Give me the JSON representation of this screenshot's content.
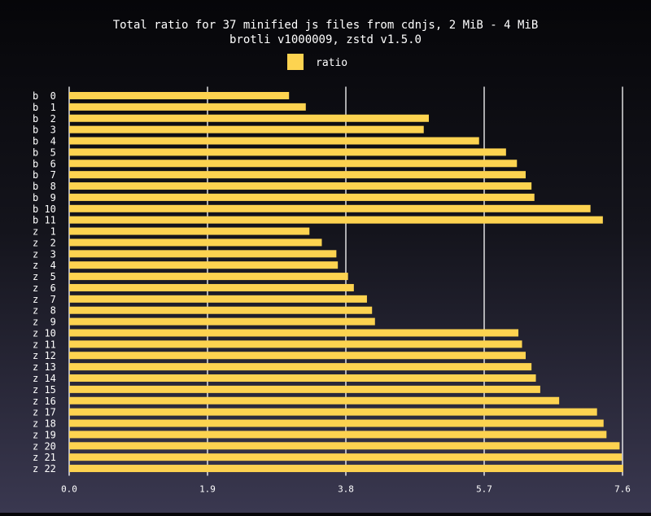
{
  "chart_data": {
    "type": "bar",
    "orientation": "horizontal",
    "title": "Total ratio for 37 minified js files from cdnjs, 2 MiB - 4 MiB",
    "subtitle": "brotli v1000009, zstd v1.5.0",
    "legend": {
      "label": "ratio",
      "placement": "top-center"
    },
    "bar_color": "#fdd350",
    "grid_color": "#ffffff",
    "xlim": [
      0,
      7.6
    ],
    "xticks": [
      "0.0",
      "1.9",
      "3.8",
      "5.7",
      "7.6"
    ],
    "xtick_values": [
      0,
      1.9,
      3.8,
      5.7,
      7.6
    ],
    "grid": true,
    "categories": [
      "b  0",
      "b  1",
      "b  2",
      "b  3",
      "b  4",
      "b  5",
      "b  6",
      "b  7",
      "b  8",
      "b  9",
      "b 10",
      "b 11",
      "z  1",
      "z  2",
      "z  3",
      "z  4",
      "z  5",
      "z  6",
      "z  7",
      "z  8",
      "z  9",
      "z 10",
      "z 11",
      "z 12",
      "z 13",
      "z 14",
      "z 15",
      "z 16",
      "z 17",
      "z 18",
      "z 19",
      "z 20",
      "z 21",
      "z 22"
    ],
    "series": [
      {
        "name": "ratio",
        "values": [
          3.02,
          3.25,
          4.94,
          4.87,
          5.63,
          6.0,
          6.15,
          6.27,
          6.35,
          6.39,
          7.16,
          7.33,
          3.3,
          3.47,
          3.67,
          3.69,
          3.83,
          3.91,
          4.09,
          4.16,
          4.2,
          6.17,
          6.22,
          6.27,
          6.35,
          6.41,
          6.47,
          6.73,
          7.25,
          7.34,
          7.38,
          7.56,
          7.59,
          7.61
        ]
      }
    ]
  }
}
